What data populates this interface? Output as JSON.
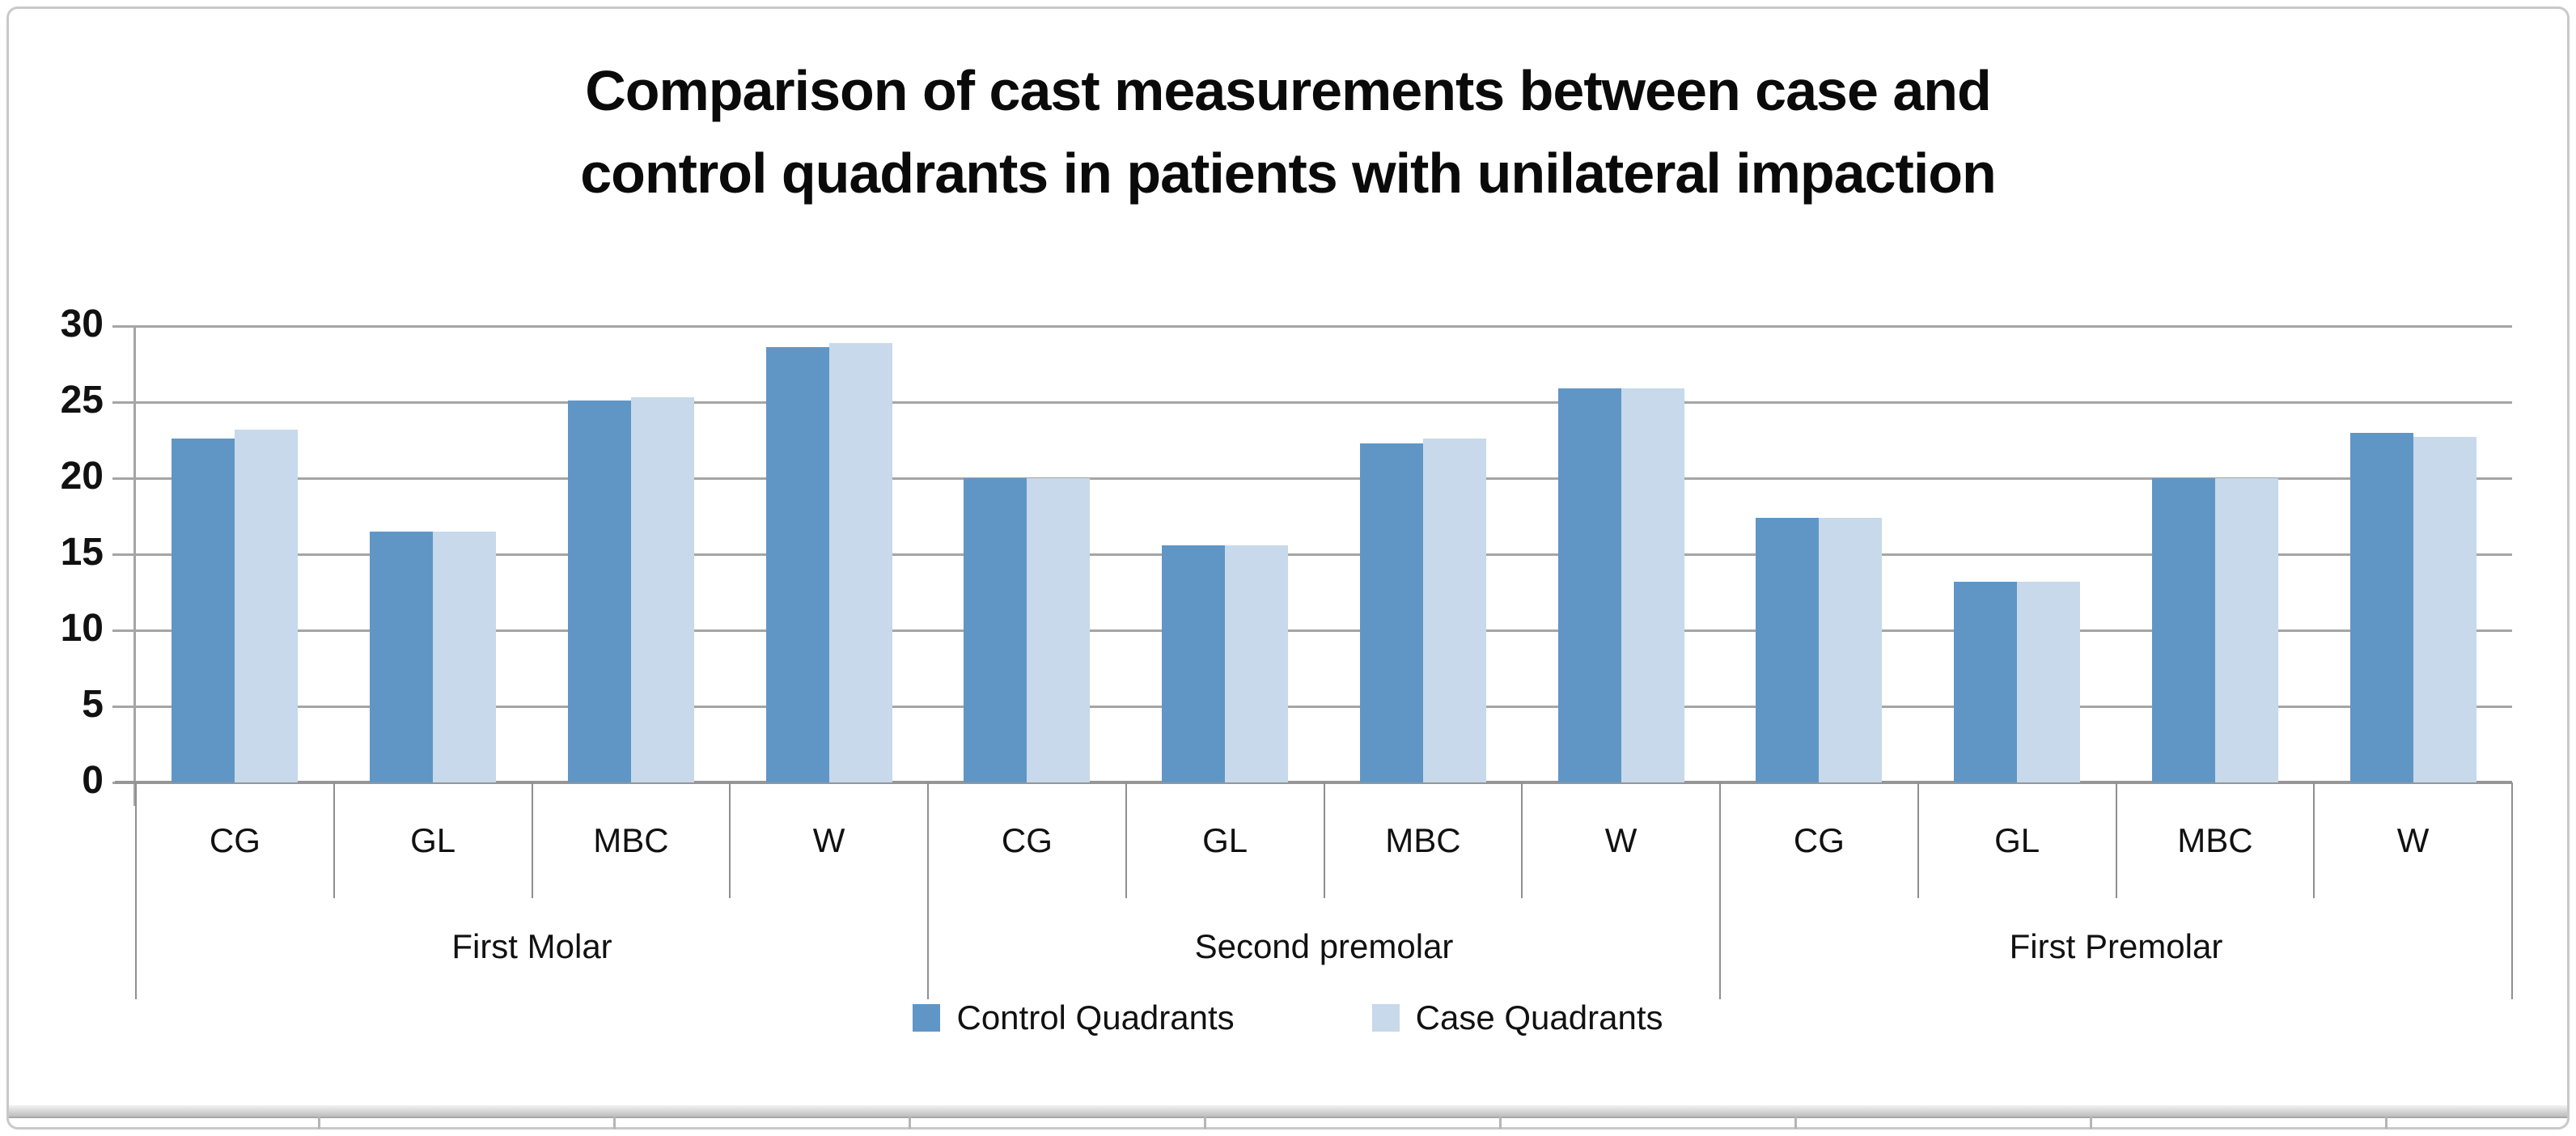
{
  "title": {
    "line1": "Comparison of cast measurements between case and",
    "line2": "control quadrants in patients with unilateral impaction"
  },
  "legend": [
    {
      "label": "Control Quadrants",
      "color": "#6096C6"
    },
    {
      "label": "Case Quadrants",
      "color": "#C7D9EA"
    }
  ],
  "colors": {
    "control_bar": "#6096C6",
    "case_bar": "#C7D9EA",
    "gridline": "#A5A5A5",
    "axis": "#969696",
    "text": "#0A0A0A"
  },
  "chart_data": {
    "type": "bar",
    "title": "Comparison of cast measurements between case and control quadrants in patients with unilateral impaction",
    "group_labels": [
      "First Molar",
      "Second premolar",
      "First Premolar"
    ],
    "categories": [
      "CG",
      "GL",
      "MBC",
      "W",
      "CG",
      "GL",
      "MBC",
      "W",
      "CG",
      "GL",
      "MBC",
      "W"
    ],
    "series": [
      {
        "name": "Control Quadrants",
        "color": "#6096C6",
        "values": [
          22.6,
          16.5,
          25.1,
          28.6,
          20.0,
          15.6,
          22.3,
          25.9,
          17.4,
          13.2,
          20.0,
          23.0
        ]
      },
      {
        "name": "Case Quadrants",
        "color": "#C7D9EA",
        "values": [
          23.2,
          16.5,
          25.3,
          28.9,
          20.0,
          15.6,
          22.6,
          25.9,
          17.4,
          13.2,
          20.0,
          22.7
        ]
      }
    ],
    "ylim": [
      0,
      30
    ],
    "y_ticks": [
      0,
      5,
      10,
      15,
      20,
      25,
      30
    ],
    "xlabel": "",
    "ylabel": "",
    "grid": true,
    "legend_position": "bottom"
  }
}
